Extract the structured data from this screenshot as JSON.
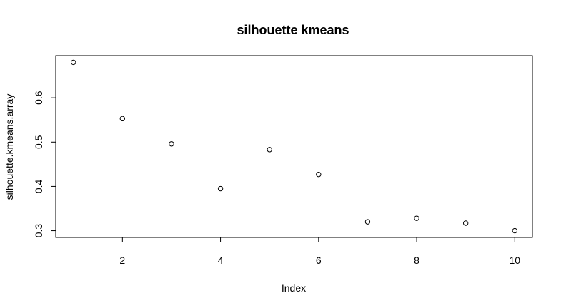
{
  "chart_data": {
    "type": "scatter",
    "title": "silhouette kmeans",
    "xlabel": "Index",
    "ylabel": "silhouette.kmeans.array",
    "x": [
      1,
      2,
      3,
      4,
      5,
      6,
      7,
      8,
      9,
      10
    ],
    "y": [
      0.68,
      0.553,
      0.496,
      0.395,
      0.483,
      0.427,
      0.32,
      0.328,
      0.317,
      0.3
    ],
    "xlim": [
      0.64,
      10.36
    ],
    "ylim": [
      0.2848,
      0.6952
    ],
    "xticks": [
      2,
      4,
      6,
      8,
      10
    ],
    "xtick_labels": [
      "2",
      "4",
      "6",
      "8",
      "10"
    ],
    "yticks": [
      0.3,
      0.4,
      0.5,
      0.6
    ],
    "ytick_labels": [
      "0.3",
      "0.4",
      "0.5",
      "0.6"
    ],
    "grid": false,
    "legend": "none",
    "marker": "open-circle",
    "colors": {
      "point_stroke": "#000000",
      "axis": "#000000",
      "background": "#ffffff"
    }
  }
}
